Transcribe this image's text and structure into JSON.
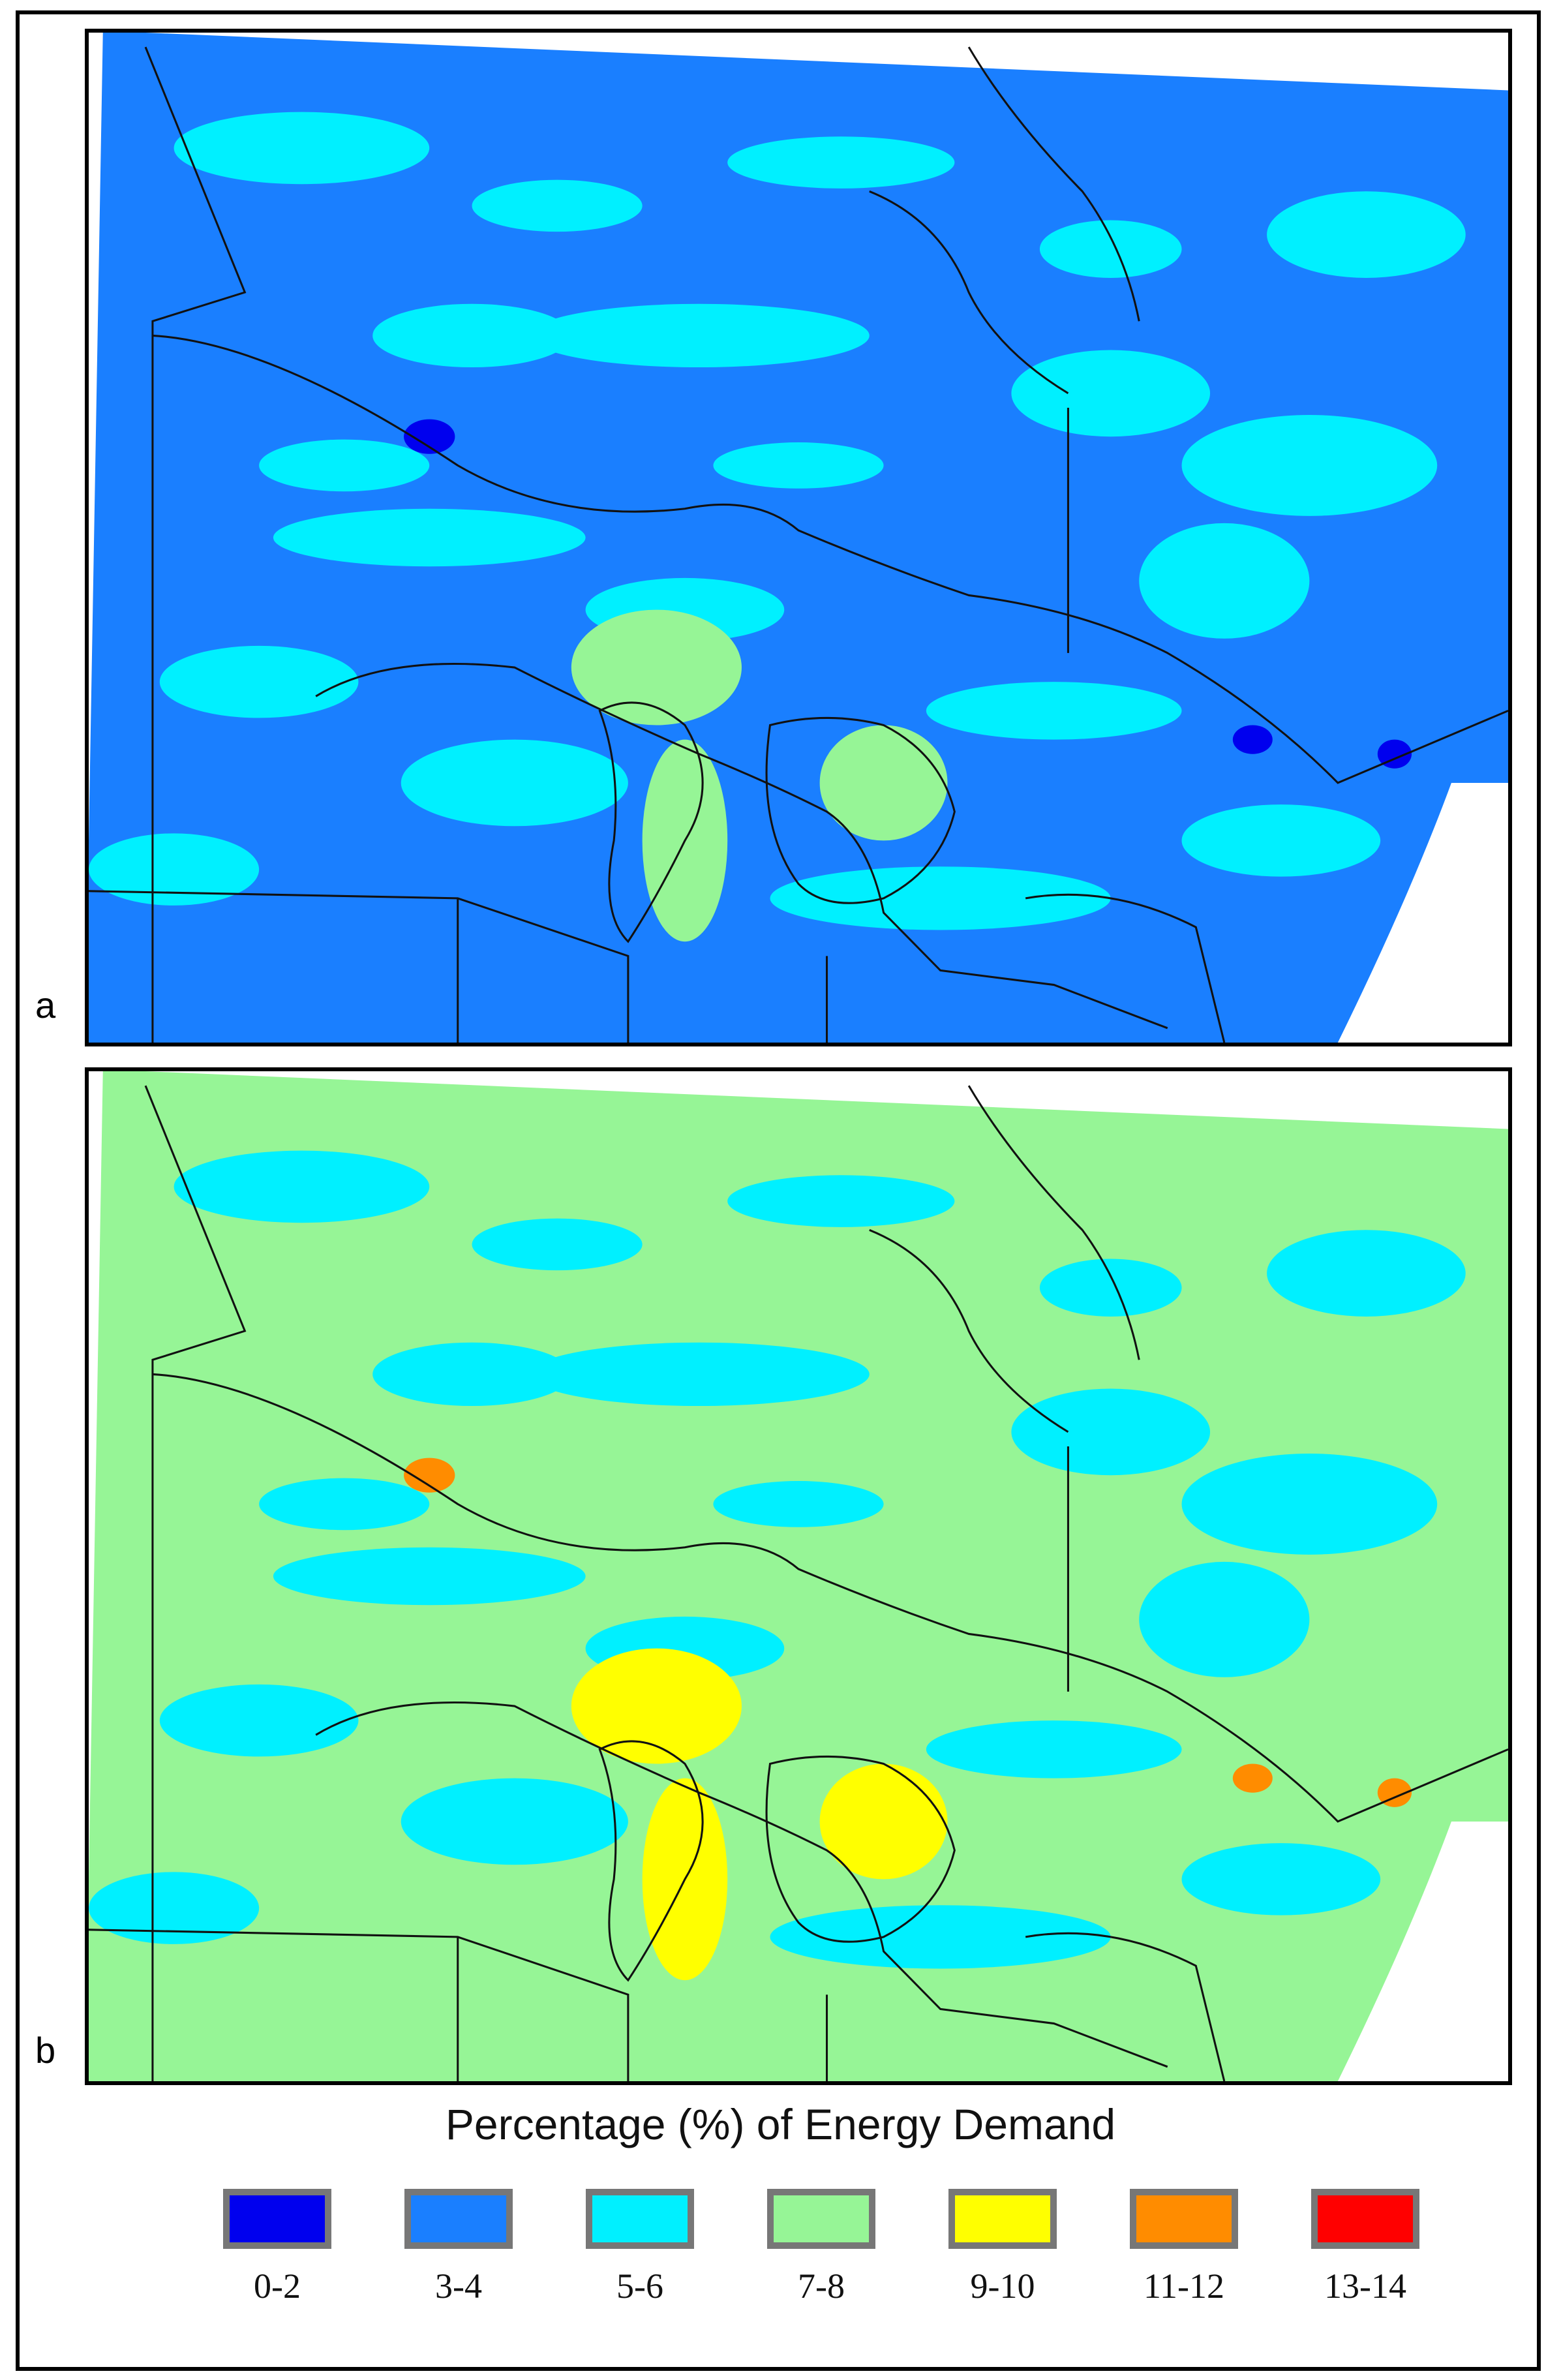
{
  "panels": [
    {
      "label": "a",
      "background_class": "3-4",
      "patch_class": "5-6",
      "hot_class": "7-8",
      "spot_class": "0-2"
    },
    {
      "label": "b",
      "background_class": "7-8",
      "patch_class": "5-6",
      "hot_class": "9-10",
      "spot_class": "11-12"
    }
  ],
  "legend": {
    "title": "Percentage (%) of Energy Demand",
    "items": [
      {
        "label": "0-2",
        "color": "#0000ee"
      },
      {
        "label": "3-4",
        "color": "#1a7fff"
      },
      {
        "label": "5-6",
        "color": "#00f0ff"
      },
      {
        "label": "7-8",
        "color": "#96f596"
      },
      {
        "label": "9-10",
        "color": "#ffff00"
      },
      {
        "label": "11-12",
        "color": "#ff8c00"
      },
      {
        "label": "13-14",
        "color": "#ff0000"
      }
    ]
  }
}
